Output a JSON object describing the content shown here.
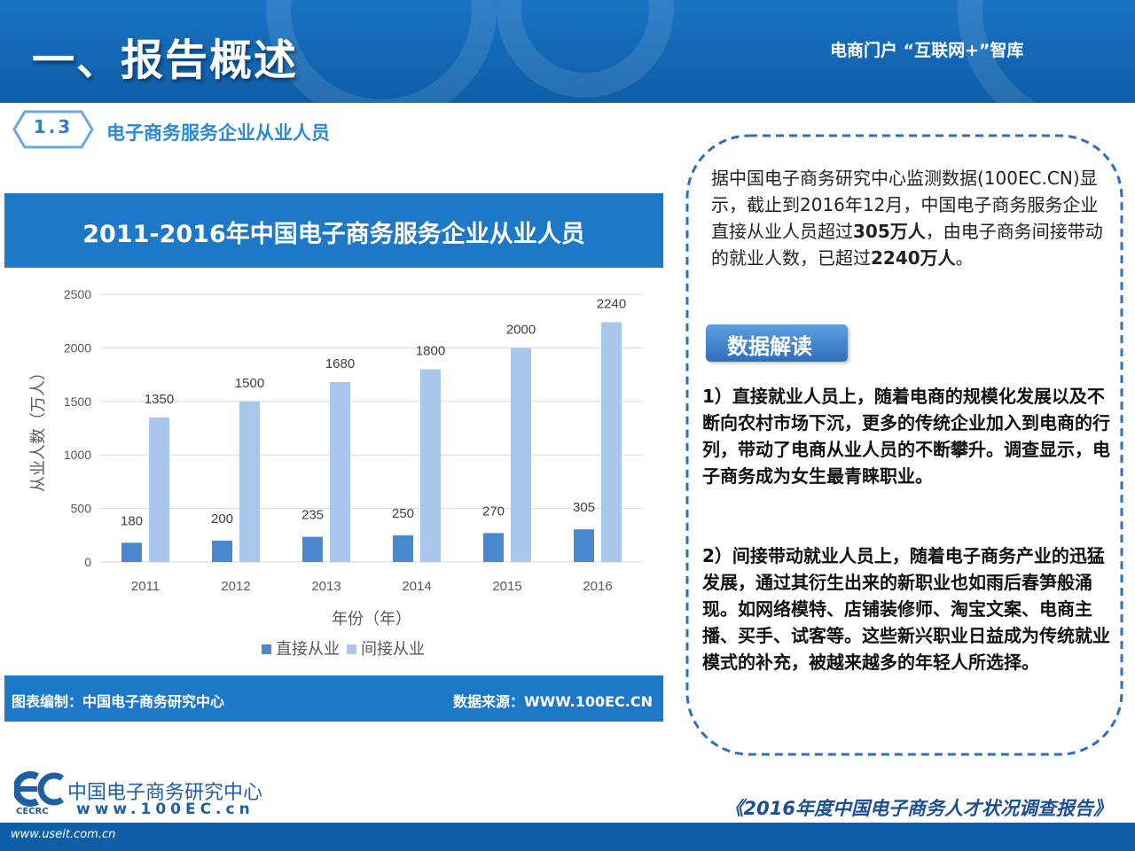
{
  "header": {
    "title": "一、报告概述",
    "tag": "电商门户 “互联网+”智库"
  },
  "section": {
    "number": "1.3",
    "title": "电子商务服务企业从业人员"
  },
  "chart_panel": {
    "title": "2011-2016年中国电子商务服务企业从业人员",
    "footer_left": "图表编制：中国电子商务研究中心",
    "footer_right": "数据来源：WWW.100EC.CN"
  },
  "chart_data": {
    "type": "bar",
    "title": "2011-2016年中国电子商务服务企业从业人员",
    "xlabel": "年份（年）",
    "ylabel": "从业人数（万人）",
    "categories": [
      "2011",
      "2012",
      "2013",
      "2014",
      "2015",
      "2016"
    ],
    "series": [
      {
        "name": "直接从业",
        "color": "#4a88d0",
        "values": [
          180,
          200,
          235,
          250,
          270,
          305
        ]
      },
      {
        "name": "间接从业",
        "color": "#a9c6ec",
        "values": [
          1350,
          1500,
          1680,
          1800,
          2000,
          2240
        ]
      }
    ],
    "ylim": [
      0,
      2500
    ],
    "yticks": [
      0,
      500,
      1000,
      1500,
      2000,
      2500
    ],
    "grid": true,
    "legend": "bottom",
    "data_labels": true
  },
  "text_panel": {
    "intro_part1": "据中国电子商务研究中心监测数据(100EC.CN)显示，截止到2016年12月，中国电子商务服务企业直接从业人员超过",
    "intro_bold1": "305万人",
    "intro_part2": "，由电子商务间接带动的就业人数，已超过",
    "intro_bold2": "2240万人",
    "intro_part3": "。",
    "interp_label": "数据解读",
    "point1": "1）直接就业人员上，随着电商的规模化发展以及不断向农村市场下沉，更多的传统企业加入到电商的行列，带动了电商从业人员的不断攀升。调查显示，电子商务成为女生最青睐职业。",
    "point2": "2）间接带动就业人员上，随着电子商务产业的迅猛发展，通过其衍生出来的新职业也如雨后春笋般涌现。如网络模特、店铺装修师、淘宝文案、电商主播、买手、试客等。这些新兴职业日益成为传统就业模式的补充，被越来越多的年轻人所选择。"
  },
  "footer": {
    "logo_cn": "中国电子商务研究中心",
    "logo_url": "www.100EC.cn",
    "logo_abbr": "CECRC",
    "report_name": "《2016年度中国电子商务人才状况调查报告》",
    "watermark": "www.useit.com.cn"
  },
  "colors": {
    "brand_blue": "#1d78c8",
    "header_blue": "#0e5ea8",
    "direct_bar": "#4a88d0",
    "indirect_bar": "#a9c6ec"
  }
}
